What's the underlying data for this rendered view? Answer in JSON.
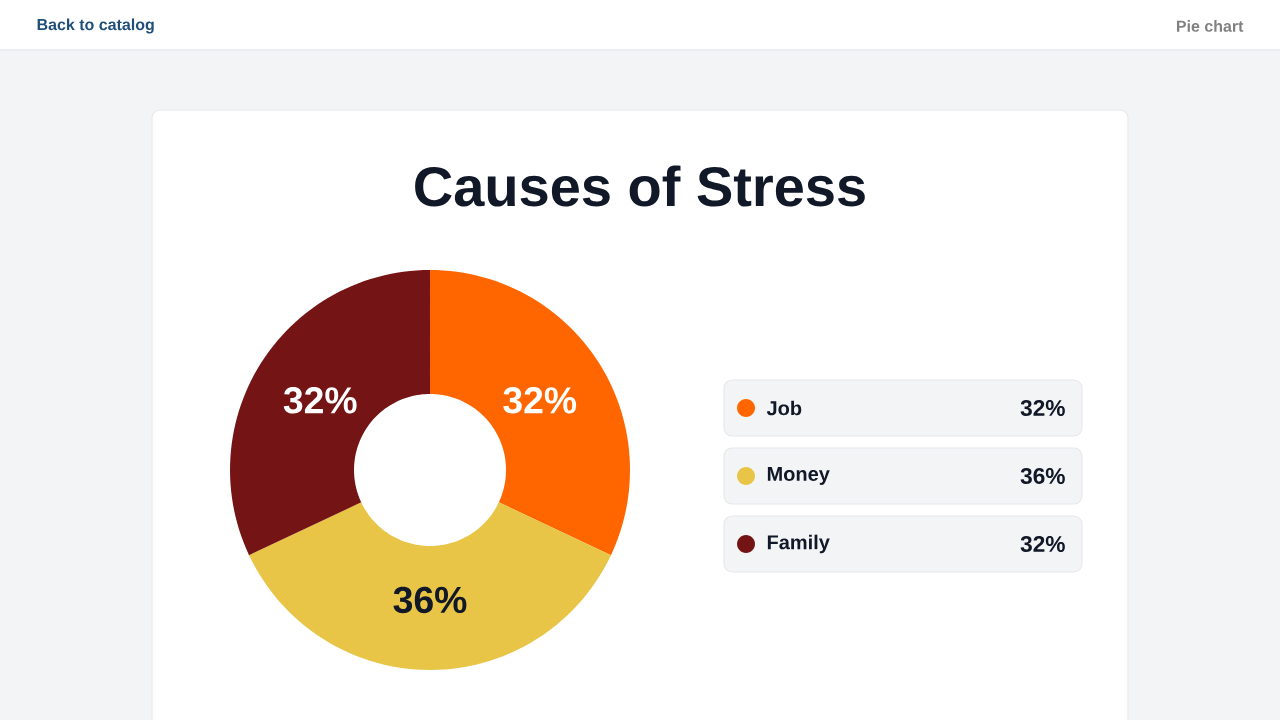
{
  "chart_data": {
    "type": "donut",
    "title": "Causes of Stress",
    "categories": [
      "Job",
      "Money",
      "Family"
    ],
    "values": [
      32,
      36,
      32
    ],
    "value_labels": [
      "32%",
      "36%",
      "32%"
    ],
    "colors": [
      "#ff6600",
      "#e8c547",
      "#741414"
    ],
    "legend": "right",
    "annotations": [
      "Back to catalog",
      "Pie chart"
    ]
  }
}
